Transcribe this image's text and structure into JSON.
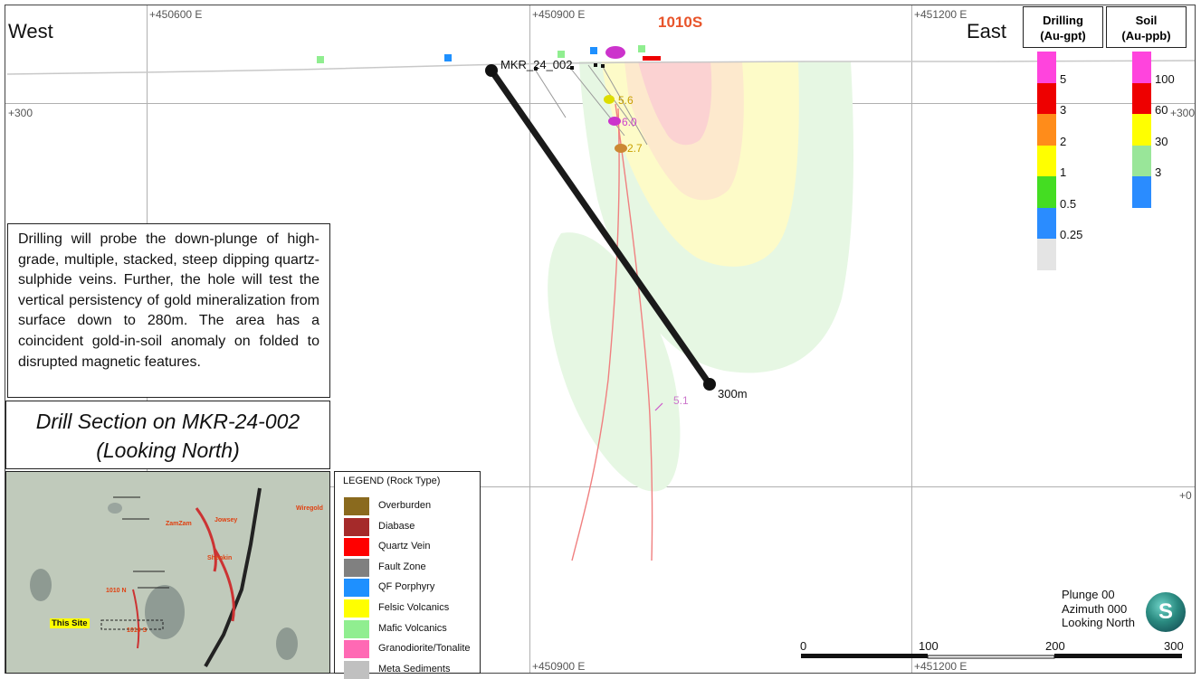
{
  "section": {
    "name": "1010S",
    "west_label": "West",
    "east_label": "East",
    "top_coords": [
      "+450600 E",
      "+450900 E",
      "+451200 E"
    ],
    "bottom_coords": [
      "+450900 E",
      "+451200 E"
    ],
    "elevations": {
      "left_300": "+300",
      "right_300": "+300",
      "right_0": "+0"
    }
  },
  "drillhole": {
    "name": "MKR_24_002",
    "depth_label": "300m"
  },
  "assays": [
    "5.6",
    "6.0",
    "2.7",
    "5.1"
  ],
  "description": "Drilling will probe the down-plunge of high-grade, multiple, stacked, steep dipping quartz-sulphide veins. Further, the hole will test the vertical persistency of gold mineralization from surface down to 280m. The area has a coincident gold-in-soil anomaly on folded to disrupted magnetic features.",
  "title": {
    "line1": "Drill Section on MKR-24-002",
    "line2": "(Looking North)"
  },
  "inset_map": {
    "labels": [
      "ZamZam",
      "Jowsey",
      "Wiregold",
      "Shenkin",
      "1010 N",
      "This Site",
      "1010 S"
    ],
    "this_site": "This Site"
  },
  "legend": {
    "title": "LEGEND (Rock Type)",
    "items": [
      {
        "label": "Overburden",
        "color": "#8a6a1e"
      },
      {
        "label": "Diabase",
        "color": "#a52a2a"
      },
      {
        "label": "Quartz Vein",
        "color": "#ff0000"
      },
      {
        "label": "Fault Zone",
        "color": "#808080"
      },
      {
        "label": "QF Porphyry",
        "color": "#1e90ff"
      },
      {
        "label": "Felsic Volcanics",
        "color": "#ffff00"
      },
      {
        "label": "Mafic Volcanics",
        "color": "#90ee90"
      },
      {
        "label": "Granodiorite/Tonalite",
        "color": "#ff69b4"
      },
      {
        "label": "Meta Sediments",
        "color": "#c0c0c0"
      }
    ]
  },
  "drilling_scale": {
    "header_line1": "Drilling",
    "header_line2": "(Au-gpt)",
    "colors": [
      "#ff44dd",
      "#ee0000",
      "#ff8c1a",
      "#ffff00",
      "#44dd22",
      "#2a8cff",
      "#e4e4e4"
    ],
    "labels": [
      "5",
      "3",
      "2",
      "1",
      "0.5",
      "0.25"
    ]
  },
  "soil_scale": {
    "header_line1": "Soil",
    "header_line2": "(Au-ppb)",
    "colors": [
      "#ff44dd",
      "#ee0000",
      "#ffff00",
      "#99e699",
      "#2a8cff"
    ],
    "labels": [
      "100",
      "60",
      "30",
      "3"
    ]
  },
  "view": {
    "plunge": "Plunge 00",
    "azimuth": "Azimuth 000",
    "looking": "Looking North"
  },
  "logo_letter": "S",
  "scale_bar": {
    "labels": [
      "0",
      "100",
      "200",
      "300"
    ]
  }
}
